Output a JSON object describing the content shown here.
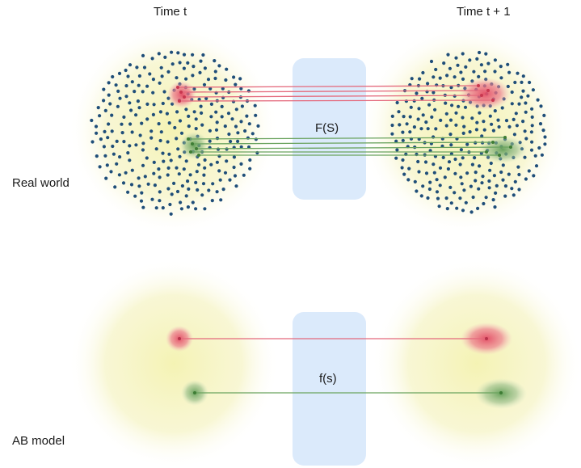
{
  "labels": {
    "time_left": "Time t",
    "time_right": "Time t + 1",
    "row_top": "Real world",
    "row_bottom": "AB model",
    "map_top": "F(S)",
    "map_bottom": "f(s)"
  },
  "colors": {
    "population_glow": "#f3f1b8",
    "transform_box": "#dbeafb",
    "agent_dot": "#1f4e79",
    "red_group": "#e4596f",
    "green_group": "#5f9d52"
  }
}
